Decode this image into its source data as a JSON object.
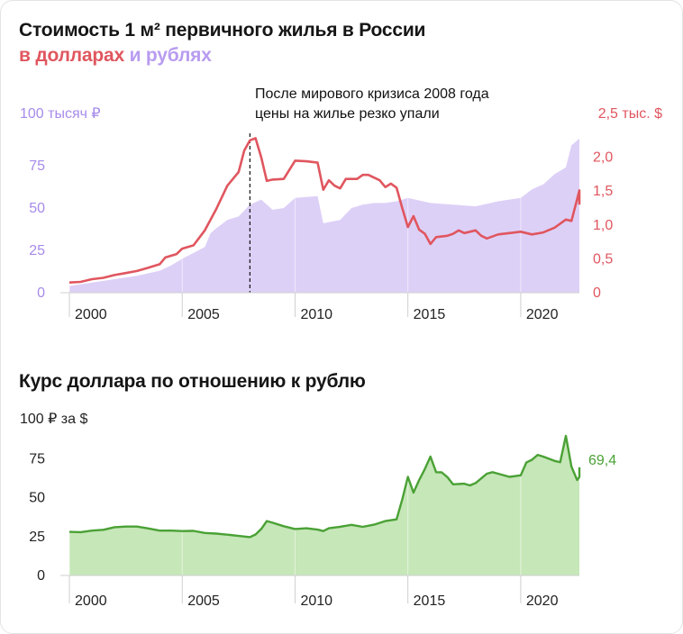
{
  "header": {
    "title": "Стоимость 1 м² первичного жилья в России",
    "subtitle_usd": "в долларах",
    "subtitle_and": " и ",
    "subtitle_rub": "рублях"
  },
  "chart_data": [
    {
      "type": "area+line",
      "title": "Стоимость 1 м² первичного жилья в России",
      "left_axis_label": "100 тысяч ₽",
      "right_axis_label": "2,5 тыс. $",
      "left_ticks": [
        "0",
        "25",
        "50",
        "75"
      ],
      "right_ticks": [
        "0",
        "0,5",
        "1,0",
        "1,5",
        "2,0"
      ],
      "x_ticks": [
        "2000",
        "2005",
        "2010",
        "2015",
        "2020"
      ],
      "xlim": [
        1999.6,
        2022.6
      ],
      "ylim_rub": [
        0,
        100
      ],
      "ylim_usd": [
        0,
        2.5
      ],
      "annotation": [
        "После мирового кризиса 2008 года",
        "цены на жилье резко упали"
      ],
      "annotation_x": 2008.0,
      "colors": {
        "usd": "#e0565f",
        "rub": "#ddd0f7",
        "left_axis": "#a78bea"
      },
      "series": [
        {
          "name": "в долларах",
          "unit": "тыс. $",
          "points": [
            [
              2000.0,
              0.15
            ],
            [
              2000.5,
              0.16
            ],
            [
              2001.0,
              0.2
            ],
            [
              2001.5,
              0.22
            ],
            [
              2002.0,
              0.26
            ],
            [
              2002.5,
              0.29
            ],
            [
              2003.0,
              0.32
            ],
            [
              2003.5,
              0.37
            ],
            [
              2004.0,
              0.42
            ],
            [
              2004.25,
              0.52
            ],
            [
              2004.75,
              0.57
            ],
            [
              2005.0,
              0.65
            ],
            [
              2005.5,
              0.7
            ],
            [
              2006.0,
              0.92
            ],
            [
              2006.5,
              1.23
            ],
            [
              2007.0,
              1.58
            ],
            [
              2007.5,
              1.78
            ],
            [
              2007.75,
              2.1
            ],
            [
              2008.0,
              2.25
            ],
            [
              2008.25,
              2.28
            ],
            [
              2008.5,
              2.0
            ],
            [
              2008.75,
              1.65
            ],
            [
              2009.0,
              1.67
            ],
            [
              2009.5,
              1.68
            ],
            [
              2010.0,
              1.95
            ],
            [
              2010.5,
              1.94
            ],
            [
              2011.0,
              1.92
            ],
            [
              2011.25,
              1.52
            ],
            [
              2011.5,
              1.66
            ],
            [
              2011.75,
              1.58
            ],
            [
              2012.0,
              1.54
            ],
            [
              2012.25,
              1.68
            ],
            [
              2012.75,
              1.68
            ],
            [
              2013.0,
              1.74
            ],
            [
              2013.25,
              1.74
            ],
            [
              2013.75,
              1.66
            ],
            [
              2014.0,
              1.56
            ],
            [
              2014.25,
              1.61
            ],
            [
              2014.5,
              1.55
            ],
            [
              2014.75,
              1.25
            ],
            [
              2015.0,
              0.97
            ],
            [
              2015.25,
              1.13
            ],
            [
              2015.5,
              0.93
            ],
            [
              2015.75,
              0.87
            ],
            [
              2016.0,
              0.72
            ],
            [
              2016.25,
              0.82
            ],
            [
              2016.75,
              0.84
            ],
            [
              2017.0,
              0.87
            ],
            [
              2017.25,
              0.92
            ],
            [
              2017.5,
              0.88
            ],
            [
              2018.0,
              0.92
            ],
            [
              2018.25,
              0.84
            ],
            [
              2018.5,
              0.8
            ],
            [
              2019.0,
              0.86
            ],
            [
              2019.5,
              0.88
            ],
            [
              2020.0,
              0.9
            ],
            [
              2020.5,
              0.86
            ],
            [
              2021.0,
              0.89
            ],
            [
              2021.5,
              0.96
            ],
            [
              2022.0,
              1.08
            ],
            [
              2022.25,
              1.06
            ],
            [
              2022.5,
              1.38
            ],
            [
              2022.75,
              1.51
            ],
            [
              2023.0,
              1.3
            ]
          ]
        },
        {
          "name": "в рублях",
          "unit": "тыс. ₽",
          "points": [
            [
              2000.0,
              4
            ],
            [
              2001.0,
              6
            ],
            [
              2002.0,
              8
            ],
            [
              2003.0,
              10
            ],
            [
              2004.0,
              13
            ],
            [
              2004.5,
              16
            ],
            [
              2005.0,
              20
            ],
            [
              2006.0,
              27
            ],
            [
              2006.25,
              35
            ],
            [
              2006.5,
              38
            ],
            [
              2007.0,
              43
            ],
            [
              2007.5,
              45
            ],
            [
              2008.0,
              52
            ],
            [
              2008.5,
              55
            ],
            [
              2009.0,
              49
            ],
            [
              2009.5,
              50
            ],
            [
              2010.0,
              56
            ],
            [
              2011.0,
              57
            ],
            [
              2011.25,
              41
            ],
            [
              2012.0,
              43
            ],
            [
              2012.5,
              50
            ],
            [
              2013.0,
              52
            ],
            [
              2013.5,
              53
            ],
            [
              2014.0,
              53
            ],
            [
              2014.5,
              54
            ],
            [
              2015.0,
              56
            ],
            [
              2016.0,
              53
            ],
            [
              2017.0,
              52
            ],
            [
              2018.0,
              51
            ],
            [
              2019.0,
              54
            ],
            [
              2020.0,
              56
            ],
            [
              2020.5,
              61
            ],
            [
              2021.0,
              64
            ],
            [
              2021.5,
              70
            ],
            [
              2022.0,
              74
            ],
            [
              2022.25,
              87
            ],
            [
              2023.0,
              91
            ]
          ]
        }
      ]
    },
    {
      "type": "area",
      "title": "Курс доллара по отношению к рублю",
      "y_axis_label": "100 ₽ за $",
      "y_ticks": [
        "0",
        "25",
        "50",
        "75"
      ],
      "x_ticks": [
        "2000",
        "2005",
        "2010",
        "2015",
        "2020"
      ],
      "xlim": [
        1999.6,
        2022.6
      ],
      "ylim": [
        0,
        100
      ],
      "end_label": "69,4",
      "colors": {
        "line": "#4aa135",
        "fill": "#c6e7b8"
      },
      "series": [
        {
          "name": "Курс доллара",
          "unit": "₽ за $",
          "points": [
            [
              2000.0,
              28
            ],
            [
              2000.5,
              27.8
            ],
            [
              2001.0,
              28.8
            ],
            [
              2001.5,
              29.3
            ],
            [
              2002.0,
              31
            ],
            [
              2002.5,
              31.4
            ],
            [
              2003.0,
              31.4
            ],
            [
              2003.5,
              30.2
            ],
            [
              2004.0,
              28.8
            ],
            [
              2004.5,
              28.8
            ],
            [
              2005.0,
              28.5
            ],
            [
              2005.5,
              28.6
            ],
            [
              2006.0,
              27.3
            ],
            [
              2006.5,
              26.9
            ],
            [
              2007.0,
              26.2
            ],
            [
              2007.5,
              25.4
            ],
            [
              2008.0,
              24.6
            ],
            [
              2008.25,
              26.3
            ],
            [
              2008.5,
              29.8
            ],
            [
              2008.75,
              34.9
            ],
            [
              2009.0,
              33.9
            ],
            [
              2009.5,
              31.6
            ],
            [
              2010.0,
              29.8
            ],
            [
              2010.5,
              30.3
            ],
            [
              2011.0,
              29.4
            ],
            [
              2011.25,
              28.5
            ],
            [
              2011.5,
              30.3
            ],
            [
              2012.0,
              31.3
            ],
            [
              2012.5,
              32.5
            ],
            [
              2013.0,
              31.2
            ],
            [
              2013.5,
              32.6
            ],
            [
              2014.0,
              34.9
            ],
            [
              2014.5,
              36
            ],
            [
              2014.75,
              48.7
            ],
            [
              2015.0,
              63.3
            ],
            [
              2015.25,
              53.2
            ],
            [
              2015.5,
              61.3
            ],
            [
              2015.75,
              68.3
            ],
            [
              2016.0,
              76.3
            ],
            [
              2016.25,
              66.3
            ],
            [
              2016.5,
              66.2
            ],
            [
              2016.75,
              63.1
            ],
            [
              2017.0,
              58.5
            ],
            [
              2017.5,
              58.9
            ],
            [
              2017.75,
              57.8
            ],
            [
              2018.0,
              59.3
            ],
            [
              2018.25,
              62.3
            ],
            [
              2018.5,
              65.3
            ],
            [
              2018.75,
              66.3
            ],
            [
              2019.0,
              65.3
            ],
            [
              2019.5,
              63.3
            ],
            [
              2020.0,
              64.3
            ],
            [
              2020.25,
              72.5
            ],
            [
              2020.5,
              74.3
            ],
            [
              2020.75,
              77.4
            ],
            [
              2021.0,
              76.3
            ],
            [
              2021.5,
              73.5
            ],
            [
              2021.75,
              72.7
            ],
            [
              2022.0,
              89.6
            ],
            [
              2022.25,
              69.9
            ],
            [
              2022.5,
              61.3
            ],
            [
              2022.75,
              63.1
            ],
            [
              2023.0,
              69.4
            ]
          ]
        }
      ]
    }
  ]
}
